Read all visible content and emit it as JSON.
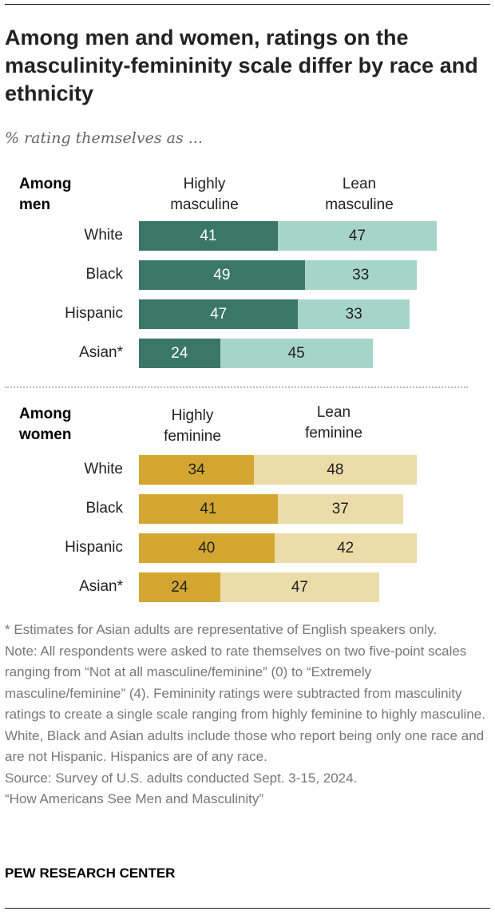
{
  "title": "Among men and women, ratings on the masculinity-femininity scale differ by race and ethnicity",
  "subtitle": "% rating themselves as ...",
  "colors": {
    "men_high": "#3a7767",
    "men_lean": "#a7d4c8",
    "women_high": "#d2a630",
    "women_lean": "#ecdcaa"
  },
  "chart_data": [
    {
      "type": "bar",
      "stacked": true,
      "orientation": "horizontal",
      "group_label": "Among men",
      "categories": [
        "White",
        "Black",
        "Hispanic",
        "Asian*"
      ],
      "series": [
        {
          "name": "Highly masculine",
          "values": [
            41,
            49,
            47,
            24
          ]
        },
        {
          "name": "Lean masculine",
          "values": [
            47,
            33,
            33,
            45
          ]
        }
      ]
    },
    {
      "type": "bar",
      "stacked": true,
      "orientation": "horizontal",
      "group_label": "Among women",
      "categories": [
        "White",
        "Black",
        "Hispanic",
        "Asian*"
      ],
      "series": [
        {
          "name": "Highly feminine",
          "values": [
            34,
            41,
            40,
            24
          ]
        },
        {
          "name": "Lean feminine",
          "values": [
            48,
            37,
            42,
            47
          ]
        }
      ]
    }
  ],
  "notes": [
    "* Estimates for Asian adults are representative of English speakers only.",
    "Note: All respondents were asked to rate themselves on two five-point scales ranging from “Not at all masculine/feminine” (0) to “Extremely masculine/feminine” (4). Femininity ratings were subtracted from masculinity ratings to create a single scale ranging from highly feminine to highly masculine. White, Black and Asian adults include those who report being only one race and are not Hispanic. Hispanics are of any race.",
    "Source: Survey of U.S. adults conducted Sept. 3-15, 2024.",
    "“How Americans See Men and Masculinity”"
  ],
  "brand": "PEW RESEARCH CENTER"
}
